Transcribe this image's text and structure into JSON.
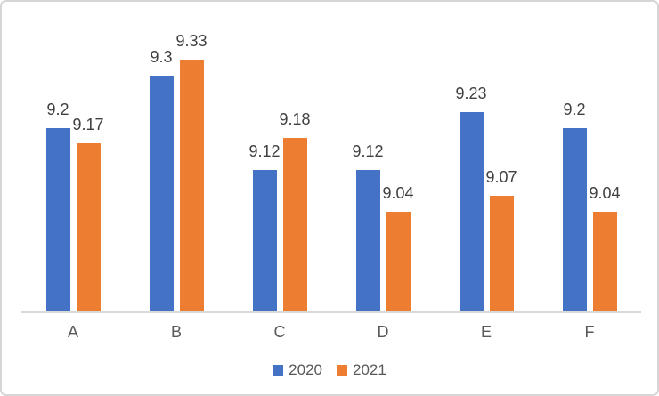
{
  "chart_data": {
    "type": "bar",
    "categories": [
      "A",
      "B",
      "C",
      "D",
      "E",
      "F"
    ],
    "series": [
      {
        "name": "2020",
        "color": "#4472C4",
        "values": [
          9.2,
          9.3,
          9.12,
          9.12,
          9.23,
          9.2
        ],
        "labels": [
          "9.2",
          "9.3",
          "9.12",
          "9.12",
          "9.23",
          "9.2"
        ]
      },
      {
        "name": "2021",
        "color": "#ED7D31",
        "values": [
          9.17,
          9.33,
          9.18,
          9.04,
          9.07,
          9.04
        ],
        "labels": [
          "9.17",
          "9.33",
          "9.18",
          "9.04",
          "9.07",
          "9.04"
        ]
      }
    ],
    "ylim": [
      8.85,
      9.4
    ],
    "grid": false,
    "data_labels": true,
    "legend_position": "bottom",
    "axis_line_color": "#D9D9D9",
    "data_label_color": "#404040",
    "axis_label_color": "#595959"
  }
}
